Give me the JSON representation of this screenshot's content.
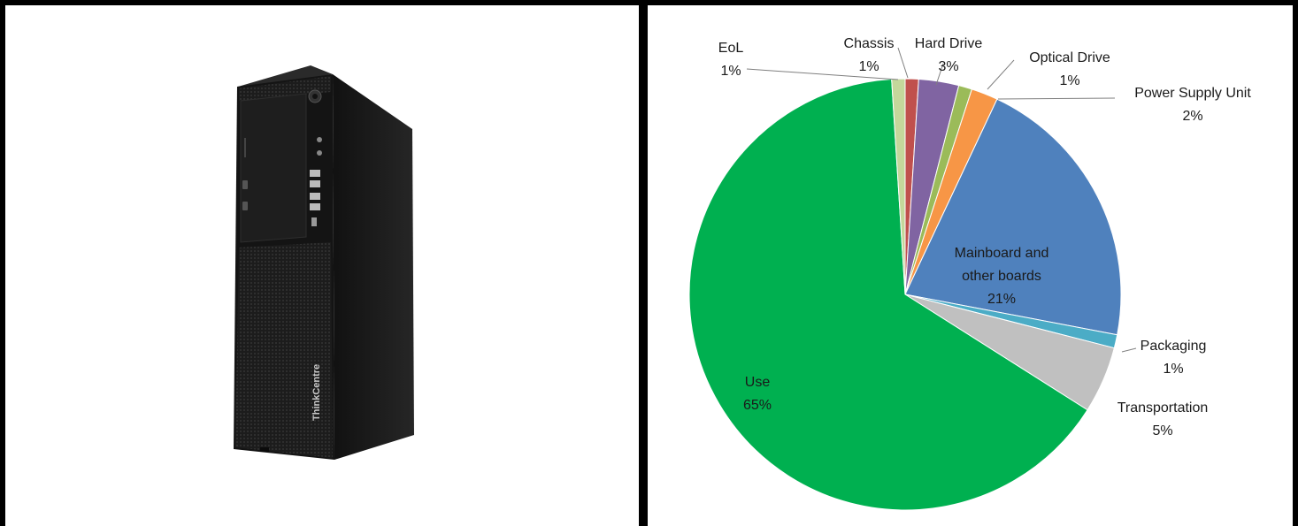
{
  "chart_data": {
    "type": "pie",
    "title": "",
    "start_angle_deg": 0,
    "direction": "clockwise",
    "slices": [
      {
        "label": "Chassis",
        "value": 1,
        "value_label": "1%",
        "color": "#c0504d"
      },
      {
        "label": "Hard Drive",
        "value": 3,
        "value_label": "3%",
        "color": "#8064a2"
      },
      {
        "label": "Optical Drive",
        "value": 1,
        "value_label": "1%",
        "color": "#9bbb59"
      },
      {
        "label": "Power Supply Unit",
        "value": 2,
        "value_label": "2%",
        "color": "#f79646"
      },
      {
        "label": "Mainboard and other boards",
        "value": 21,
        "value_label": "21%",
        "color": "#4f81bd"
      },
      {
        "label": "Packaging",
        "value": 1,
        "value_label": "1%",
        "color": "#4bacc6"
      },
      {
        "label": "Transportation",
        "value": 5,
        "value_label": "5%",
        "color": "#c0c0c0"
      },
      {
        "label": "Use",
        "value": 65,
        "value_label": "65%",
        "color": "#00b050"
      },
      {
        "label": "EoL",
        "value": 1,
        "value_label": "1%",
        "color": "#c4d79b"
      }
    ]
  },
  "product": {
    "brand_text": "ThinkCentre"
  }
}
